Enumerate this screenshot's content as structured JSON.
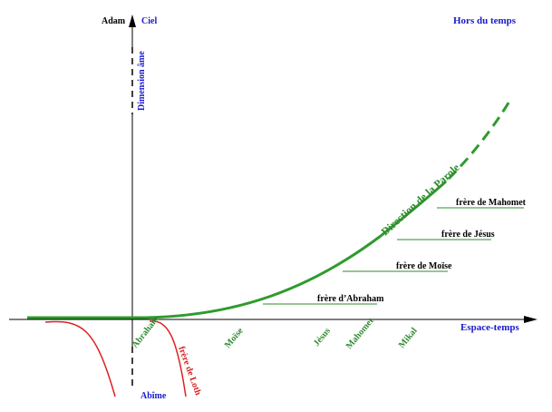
{
  "axes": {
    "top": "Adam",
    "up": "Ciel",
    "corner": "Hors du temps",
    "vertical": "Dimension âme",
    "down": "Abîme",
    "horizontal": "Espace-temps"
  },
  "curve": {
    "label": "Direction de la Parole"
  },
  "brothers": [
    "frère de Mahomet",
    "frère de Jésus",
    "frère de Moïse",
    "frère d’Abraham"
  ],
  "prophets": [
    "Abraham",
    "Moïse",
    "Jésus",
    "Mahomet",
    "Mikal"
  ],
  "fall": {
    "label": "frère de Loth"
  }
}
